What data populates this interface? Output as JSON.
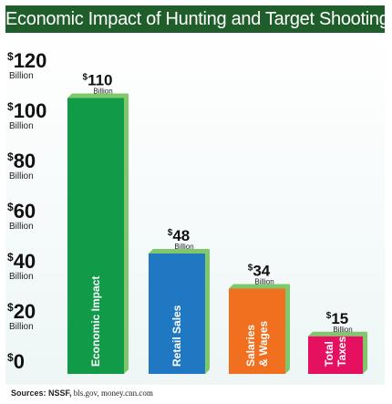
{
  "chart_data": {
    "type": "bar",
    "title": "Economic Impact of Hunting and Target Shooting",
    "categories": [
      "Economic Impact",
      "Retail Sales",
      "Salaries & Wages",
      "Total Taxes"
    ],
    "category_lines": [
      [
        "Economic Impact"
      ],
      [
        "Retail Sales"
      ],
      [
        "Salaries",
        "& Wages"
      ],
      [
        "Total",
        "Taxes"
      ]
    ],
    "values": [
      110,
      48,
      34,
      15
    ],
    "value_labels": [
      {
        "currency": "$",
        "number": "110",
        "unit": "Billion"
      },
      {
        "currency": "$",
        "number": "48",
        "unit": "Billion"
      },
      {
        "currency": "$",
        "number": "34",
        "unit": "Billion"
      },
      {
        "currency": "$",
        "number": "15",
        "unit": "Billion"
      }
    ],
    "colors": [
      "#119a48",
      "#1f78c1",
      "#f0701f",
      "#e5105f"
    ],
    "shadow_color": "#7ec76a",
    "ylim": [
      0,
      120
    ],
    "yticks": [
      {
        "value": 120,
        "currency": "$",
        "number": "120",
        "unit": "Billion"
      },
      {
        "value": 100,
        "currency": "$",
        "number": "100",
        "unit": "Billion"
      },
      {
        "value": 80,
        "currency": "$",
        "number": "80",
        "unit": "Billion"
      },
      {
        "value": 60,
        "currency": "$",
        "number": "60",
        "unit": "Billion"
      },
      {
        "value": 40,
        "currency": "$",
        "number": "40",
        "unit": "Billion"
      },
      {
        "value": 20,
        "currency": "$",
        "number": "20",
        "unit": "Billion"
      },
      {
        "value": 0,
        "currency": "$",
        "number": "0",
        "unit": ""
      }
    ],
    "grid": false,
    "legend": "none"
  },
  "sources": {
    "label": "Sources: NSSF,",
    "rest": " bls.gov, money.cnn.com"
  }
}
